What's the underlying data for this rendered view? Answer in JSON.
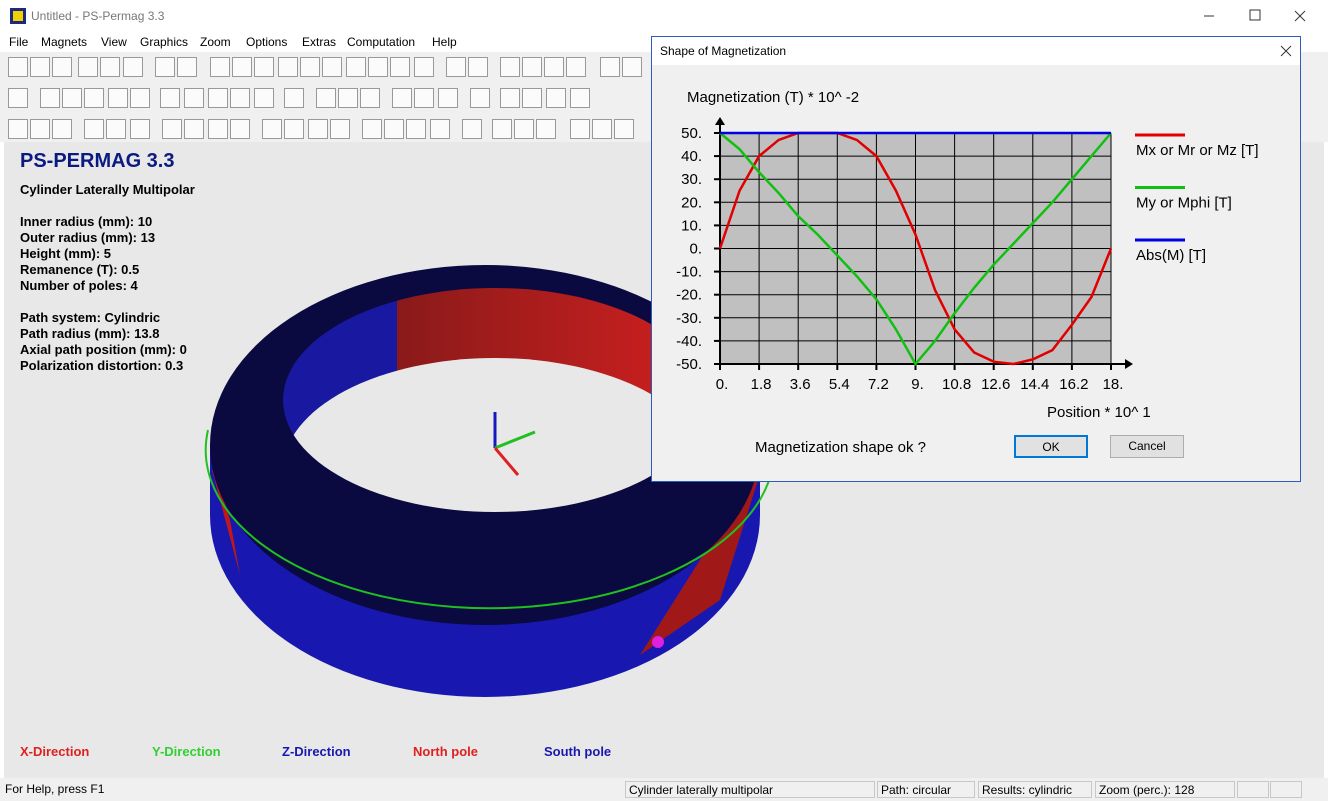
{
  "window": {
    "title": "Untitled - PS-Permag 3.3"
  },
  "menu": [
    "File",
    "Magnets",
    "View",
    "Graphics",
    "Zoom",
    "Options",
    "Extras",
    "Computation",
    "Help"
  ],
  "info": {
    "title": "PS-PERMAG 3.3",
    "subtitle": "Cylinder Laterally Multipolar",
    "params": [
      "Inner radius (mm): 10",
      "Outer radius (mm): 13",
      "Height (mm): 5",
      "Remanence (T): 0.5",
      "Number of poles: 4"
    ],
    "path": [
      "Path system: Cylindric",
      "Path radius (mm): 13.8",
      "Axial path position (mm): 0",
      "Polarization distortion: 0.3"
    ]
  },
  "legend": [
    "X-Direction",
    "Y-Direction",
    "Z-Direction",
    "North pole",
    "South pole"
  ],
  "status": [
    "For Help, press F1",
    "Cylinder laterally multipolar",
    "Path: circular",
    "Results: cylindric",
    "Zoom (perc.): 128"
  ],
  "dialog": {
    "title": "Shape of Magnetization",
    "question": "Magnetization shape ok ?",
    "buttons": [
      "OK",
      "Cancel"
    ]
  },
  "chart_data": {
    "type": "line",
    "ylabel": "Magnetization (T) * 10^ -2",
    "xlabel": "Position * 10^ 1",
    "x": [
      0,
      0.9,
      1.8,
      2.7,
      3.6,
      4.5,
      5.4,
      6.3,
      7.2,
      8.1,
      9,
      9.9,
      10.8,
      11.7,
      12.6,
      13.5,
      14.4,
      15.3,
      16.2,
      17.1,
      18
    ],
    "series": [
      {
        "name": "Mx or Mr or Mz [T]",
        "color": "#e00000",
        "values": [
          0,
          25,
          40,
          47,
          50,
          50,
          50,
          47,
          40,
          25,
          6,
          -18,
          -35,
          -45,
          -49,
          -50,
          -48,
          -44,
          -33,
          -21,
          0
        ]
      },
      {
        "name": "My or Mphi [T]",
        "color": "#10c010",
        "values": [
          50,
          43,
          33,
          24,
          14,
          6,
          -3,
          -12,
          -22,
          -35,
          -50,
          -40,
          -28,
          -17,
          -7,
          2,
          11,
          20,
          30,
          40,
          50
        ]
      },
      {
        "name": "Abs(M) [T]",
        "color": "#0000e0",
        "values": [
          50,
          50,
          50,
          50,
          50,
          50,
          50,
          50,
          50,
          50,
          50,
          50,
          50,
          50,
          50,
          50,
          50,
          50,
          50,
          50,
          50
        ]
      }
    ],
    "xlim": [
      0,
      18
    ],
    "xticks": [
      {
        "value": 0,
        "label": "0."
      },
      1.8,
      3.6,
      5.4,
      7.2,
      {
        "value": 9,
        "label": "9."
      },
      10.8,
      12.6,
      14.4,
      16.2,
      {
        "value": 18,
        "label": "18."
      }
    ],
    "ylim": [
      -50,
      50
    ],
    "yticks": [
      {
        "value": 50,
        "label": "50."
      },
      {
        "value": 40,
        "label": "40."
      },
      {
        "value": 30,
        "label": "30."
      },
      {
        "value": 20,
        "label": "20."
      },
      {
        "value": 10,
        "label": "10."
      },
      {
        "value": 0,
        "label": "0."
      },
      {
        "value": -10,
        "label": "-10."
      },
      {
        "value": -20,
        "label": "-20."
      },
      {
        "value": -30,
        "label": "-30."
      },
      {
        "value": -40,
        "label": "-40."
      },
      {
        "value": -50,
        "label": "-50."
      }
    ],
    "grid": true
  }
}
